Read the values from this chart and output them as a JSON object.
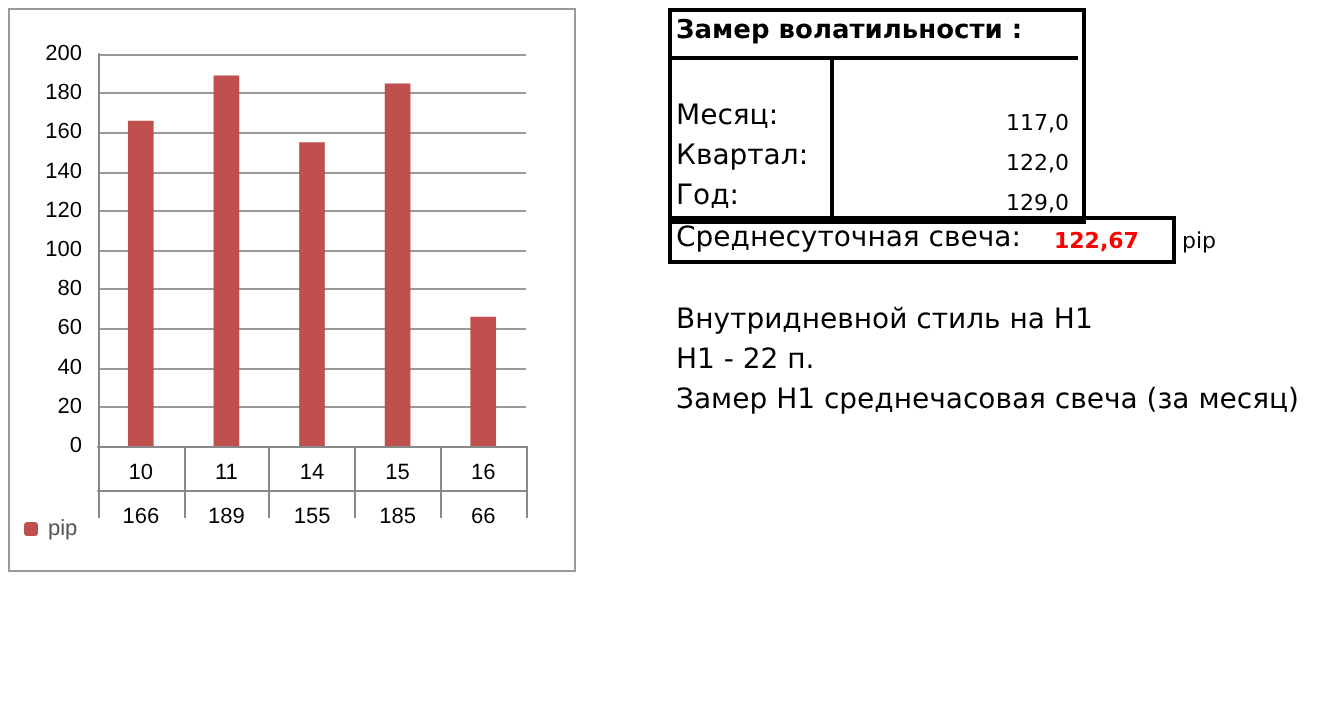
{
  "chart_data": [
    {
      "type": "bar",
      "categories": [
        "10",
        "11",
        "14",
        "15",
        "16"
      ],
      "series": [
        {
          "name": "pip",
          "color": "#c0504d",
          "values": [
            166,
            189,
            155,
            185,
            66
          ]
        }
      ],
      "ylim": [
        0,
        200
      ],
      "yticks": [
        0,
        20,
        40,
        60,
        80,
        100,
        120,
        140,
        160,
        180,
        200
      ],
      "grid": "y",
      "legend": "bottom left",
      "data_labels": true
    },
    {
      "type": "other",
      "title": "Замер  волатильности  :",
      "annotations": [
        "Месяц:",
        "117,0",
        "Квартал:",
        "122,0",
        "Год:",
        "129,0",
        "Среднесуточная свеча:",
        "122,67",
        "pip",
        "Внутридневной стиль на H1",
        "H1 - 22 п.",
        "Замер H1 среднечасовая свеча (за месяц)"
      ]
    }
  ]
}
